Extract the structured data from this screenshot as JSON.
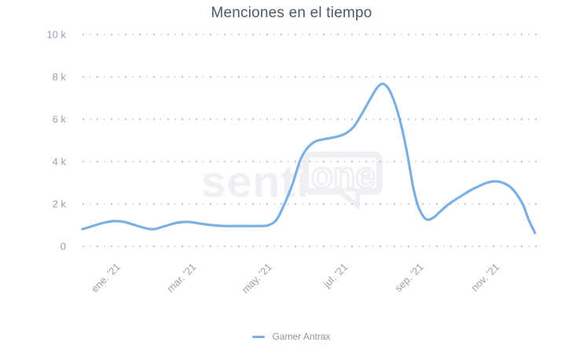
{
  "header": {
    "title": "Menciones en el tiempo"
  },
  "watermark": {
    "text_left": "senti",
    "text_bubble": "one"
  },
  "legend": {
    "items": [
      {
        "label": "Gamer Antrax",
        "color": "#7cb0e2"
      }
    ]
  },
  "chart_data": {
    "type": "line",
    "title": "Menciones en el tiempo",
    "xlabel": "",
    "ylabel": "",
    "ylim": [
      0,
      10000
    ],
    "xlim": [
      0,
      12
    ],
    "x_unit": "months; labeled ticks every 2 months of 2021",
    "grid": "dotted horizontal gridlines only",
    "legend_position": "bottom",
    "y_ticks": [
      {
        "value": 0,
        "label": "0"
      },
      {
        "value": 2000,
        "label": "2 k"
      },
      {
        "value": 4000,
        "label": "4 k"
      },
      {
        "value": 6000,
        "label": "6 k"
      },
      {
        "value": 8000,
        "label": "8 k"
      },
      {
        "value": 10000,
        "label": "10 k"
      }
    ],
    "x_ticks": [
      {
        "x": 1,
        "label": "ene. '21"
      },
      {
        "x": 3,
        "label": "mar. '21"
      },
      {
        "x": 5,
        "label": "may. '21"
      },
      {
        "x": 7,
        "label": "jul. '21"
      },
      {
        "x": 9,
        "label": "sep. '21"
      },
      {
        "x": 11,
        "label": "nov. '21"
      }
    ],
    "series": [
      {
        "name": "Gamer Antrax",
        "color": "#7cb0e2",
        "points": [
          [
            0.05,
            810
          ],
          [
            0.32,
            960
          ],
          [
            0.61,
            1110
          ],
          [
            0.88,
            1190
          ],
          [
            1.15,
            1150
          ],
          [
            1.44,
            1000
          ],
          [
            1.73,
            850
          ],
          [
            1.94,
            810
          ],
          [
            2.23,
            960
          ],
          [
            2.54,
            1110
          ],
          [
            2.85,
            1150
          ],
          [
            3.16,
            1070
          ],
          [
            3.47,
            1000
          ],
          [
            3.78,
            960
          ],
          [
            4.09,
            960
          ],
          [
            4.4,
            960
          ],
          [
            4.71,
            960
          ],
          [
            4.96,
            1000
          ],
          [
            5.17,
            1260
          ],
          [
            5.38,
            2000
          ],
          [
            5.59,
            2930
          ],
          [
            5.79,
            4040
          ],
          [
            5.96,
            4590
          ],
          [
            6.17,
            4930
          ],
          [
            6.37,
            5040
          ],
          [
            6.58,
            5110
          ],
          [
            6.79,
            5190
          ],
          [
            6.99,
            5330
          ],
          [
            7.2,
            5630
          ],
          [
            7.41,
            6220
          ],
          [
            7.62,
            6890
          ],
          [
            7.82,
            7480
          ],
          [
            7.97,
            7670
          ],
          [
            8.11,
            7480
          ],
          [
            8.24,
            7000
          ],
          [
            8.38,
            6260
          ],
          [
            8.53,
            5150
          ],
          [
            8.65,
            4040
          ],
          [
            8.78,
            2740
          ],
          [
            8.9,
            1930
          ],
          [
            9.03,
            1440
          ],
          [
            9.15,
            1260
          ],
          [
            9.32,
            1370
          ],
          [
            9.48,
            1630
          ],
          [
            9.69,
            1960
          ],
          [
            9.9,
            2220
          ],
          [
            10.1,
            2440
          ],
          [
            10.31,
            2670
          ],
          [
            10.52,
            2850
          ],
          [
            10.72,
            3000
          ],
          [
            10.93,
            3070
          ],
          [
            11.14,
            3000
          ],
          [
            11.35,
            2780
          ],
          [
            11.51,
            2440
          ],
          [
            11.68,
            1930
          ],
          [
            11.82,
            1260
          ],
          [
            11.99,
            630
          ]
        ]
      }
    ],
    "colors": {
      "line": "#7cb0e2",
      "title_text": "#4b5a6b",
      "axis_labels": "#9aa1ae",
      "grid_dots_dark": "#c3c4c9",
      "grid_dots_light": "#dfe0e4",
      "watermark": "#eff0f3"
    }
  }
}
